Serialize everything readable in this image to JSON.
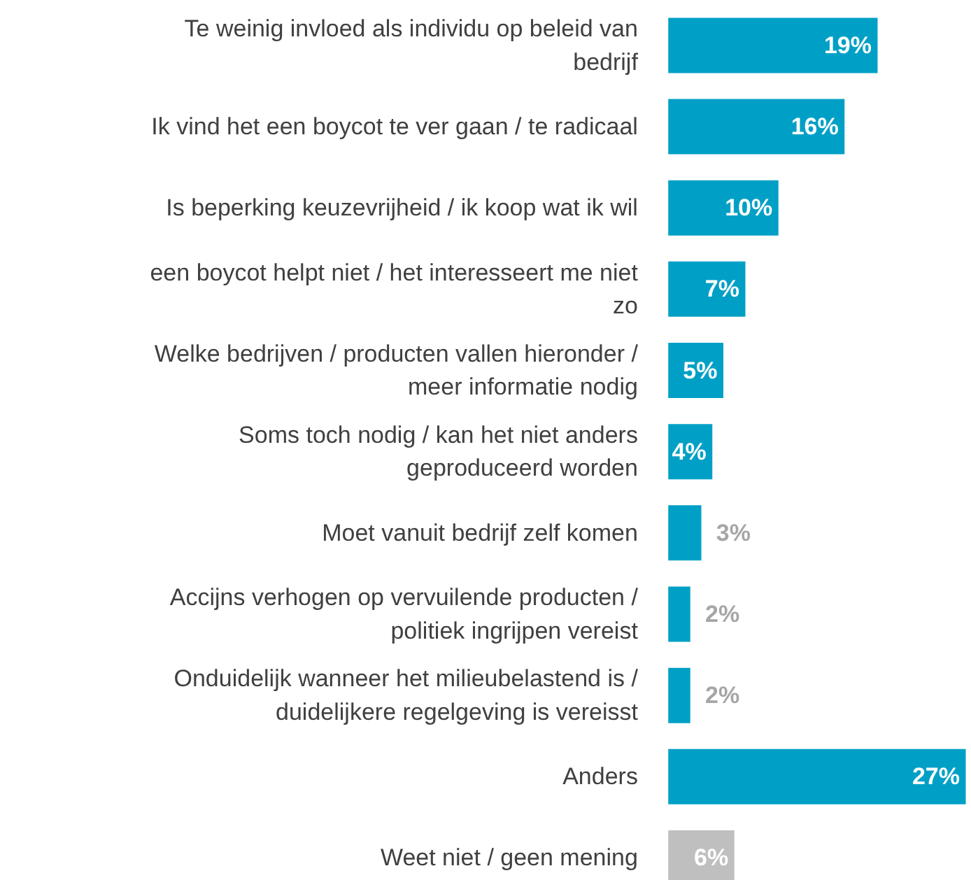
{
  "chart_data": {
    "type": "bar",
    "orientation": "horizontal",
    "data_labels": true,
    "categories": [
      "Te weinig invloed als individu op beleid van bedrijf",
      "Ik vind het een boycot te ver gaan / te radicaal",
      "Is beperking keuzevrijheid / ik koop wat ik wil",
      "een boycot helpt niet / het interesseert me niet zo",
      "Welke bedrijven / producten vallen hieronder / meer informatie nodig",
      "Soms toch nodig / kan het niet anders geproduceerd worden",
      "Moet vanuit bedrijf zelf komen",
      "Accijns verhogen op vervuilende producten / politiek ingrijpen vereist",
      "Onduidelijk wanneer het milieubelastend is / duidelijkere regelgeving is vereisst",
      "Anders",
      "Weet niet / geen mening"
    ],
    "values": [
      19,
      16,
      10,
      7,
      5,
      4,
      3,
      2,
      2,
      27,
      6
    ],
    "value_labels": [
      "19%",
      "16%",
      "10%",
      "7%",
      "5%",
      "4%",
      "3%",
      "2%",
      "2%",
      "27%",
      "6%"
    ],
    "colors": [
      "#00a0c6",
      "#00a0c6",
      "#00a0c6",
      "#00a0c6",
      "#00a0c6",
      "#00a0c6",
      "#00a0c6",
      "#00a0c6",
      "#00a0c6",
      "#00a0c6",
      "#bfbfbf"
    ]
  }
}
